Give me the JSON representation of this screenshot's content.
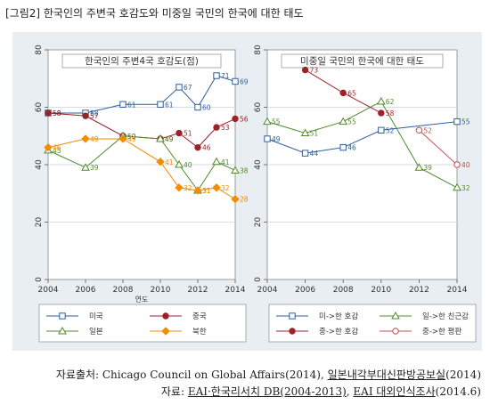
{
  "figure_caption": "[그림2]  한국인의 주변국 호감도와 미중일 국민의 한국에 대한 태도",
  "source": {
    "line1_prefix": "자료출처: Chicago Council on Global Affairs(2014), ",
    "line1_link": "일본내각부대신판방공보실",
    "line1_suffix": "(2014)",
    "line2_prefix": "자료: ",
    "line2_link1": "EAI·한국리서치 DB(2004-2013)",
    "line2_sep": ", ",
    "line2_link2": "EAI 대외인식조사",
    "line2_suffix": "(2014.6)"
  },
  "x_axis_label": "연도",
  "chart_data": [
    {
      "type": "line",
      "title": "한국인의 주변4국 호감도(점)",
      "xlabel": "연도",
      "ylabel": "",
      "xlim": [
        2004,
        2014
      ],
      "ylim": [
        0,
        80
      ],
      "x_ticks": [
        2004,
        2006,
        2008,
        2010,
        2012,
        2014
      ],
      "y_ticks": [
        0,
        20,
        40,
        60,
        80
      ],
      "grid": true,
      "legend_position": "bottom",
      "series": [
        {
          "name": "미국",
          "color": "#2e5e9e",
          "marker": "square-open",
          "x": [
            2004,
            2006,
            2008,
            2010,
            2011,
            2012,
            2013,
            2014
          ],
          "values": [
            58,
            58,
            61,
            61,
            67,
            60,
            71,
            69
          ],
          "labels": [
            "58",
            "58",
            "61",
            "61",
            "67",
            "60",
            "71",
            "69"
          ]
        },
        {
          "name": "중국",
          "color": "#9b2229",
          "marker": "circle-filled",
          "x": [
            2004,
            2006,
            2008,
            2010,
            2011,
            2012,
            2013,
            2014
          ],
          "values": [
            58,
            57,
            50,
            49,
            51,
            46,
            53,
            56
          ],
          "labels": [
            "58",
            "57",
            "50",
            "49",
            "51",
            "46",
            "53",
            "56"
          ]
        },
        {
          "name": "일본",
          "color": "#4f8a2c",
          "marker": "triangle-open",
          "x": [
            2004,
            2006,
            2008,
            2010,
            2011,
            2012,
            2013,
            2014
          ],
          "values": [
            45,
            39,
            50,
            49,
            40,
            31,
            41,
            38
          ],
          "labels": [
            "45",
            "39",
            "50",
            "49",
            "40",
            "31",
            "41",
            "38"
          ]
        },
        {
          "name": "북한",
          "color": "#f28c00",
          "marker": "diamond-filled",
          "x": [
            2004,
            2006,
            2008,
            2010,
            2011,
            2012,
            2013,
            2014
          ],
          "values": [
            46,
            49,
            49,
            41,
            32,
            31,
            32,
            28
          ],
          "labels": [
            "46",
            "49",
            "49",
            "41",
            "32",
            "31",
            "32",
            "28"
          ]
        }
      ]
    },
    {
      "type": "line",
      "title": "미중일 국민의 한국에 대한 태도",
      "xlabel": "",
      "ylabel": "",
      "xlim": [
        2004,
        2014
      ],
      "ylim": [
        0,
        80
      ],
      "x_ticks": [
        2004,
        2006,
        2008,
        2010,
        2012,
        2014
      ],
      "y_ticks": [
        0,
        20,
        40,
        60,
        80
      ],
      "grid": true,
      "legend_position": "bottom",
      "series": [
        {
          "name": "미->한 호감",
          "color": "#2e5e9e",
          "marker": "square-open",
          "x": [
            2004,
            2006,
            2008,
            2010,
            2014
          ],
          "values": [
            49,
            44,
            46,
            52,
            55
          ],
          "labels": [
            "49",
            "44",
            "46",
            "52",
            "55"
          ]
        },
        {
          "name": "일->한 친근감",
          "color": "#4f8a2c",
          "marker": "triangle-open",
          "x": [
            2004,
            2006,
            2008,
            2010,
            2012,
            2014
          ],
          "values": [
            55,
            51,
            55,
            62,
            39,
            32
          ],
          "labels": [
            "55",
            "51",
            "55",
            "62",
            "39",
            "32"
          ]
        },
        {
          "name": "중->한 호감",
          "color": "#9b2229",
          "marker": "circle-filled",
          "x": [
            2006,
            2008,
            2010
          ],
          "values": [
            73,
            65,
            58
          ],
          "labels": [
            "73",
            "65",
            "58"
          ]
        },
        {
          "name": "중->한 평판",
          "color": "#c0504d",
          "marker": "circle-open",
          "x": [
            2012,
            2014
          ],
          "values": [
            52,
            40
          ],
          "labels": [
            "52",
            "40"
          ]
        }
      ]
    }
  ]
}
